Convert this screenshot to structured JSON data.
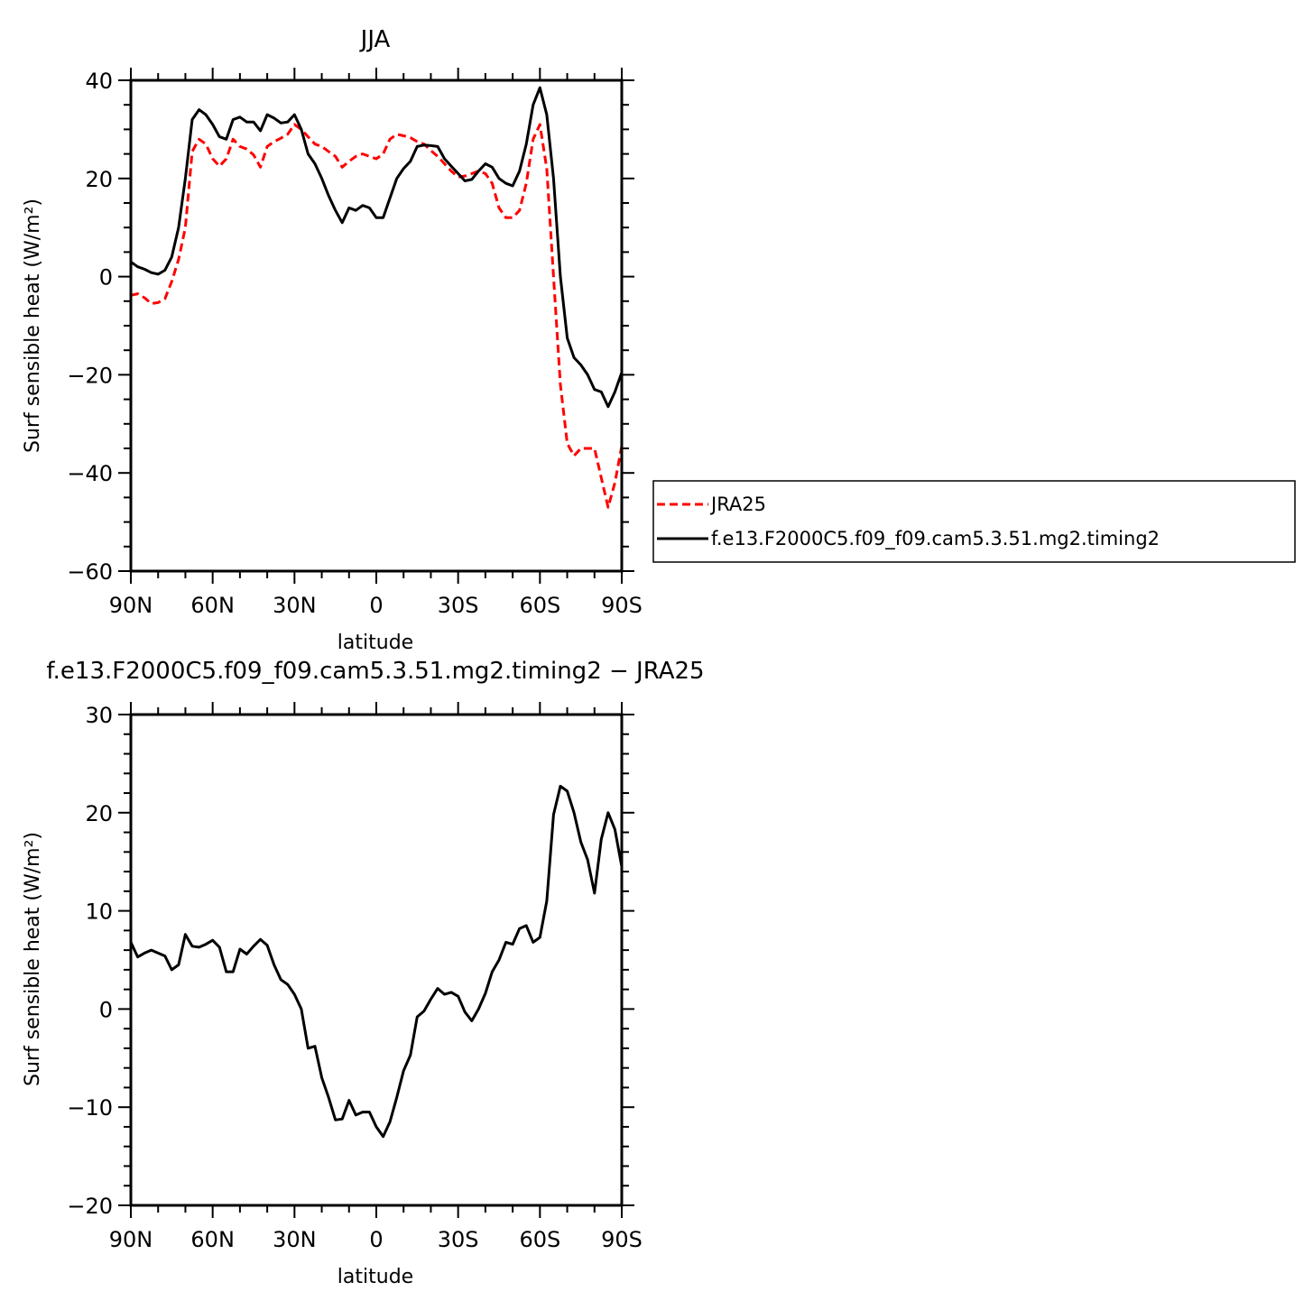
{
  "chart_data": [
    {
      "type": "line",
      "title": "JJA",
      "xlabel": "latitude",
      "ylabel": "Surf sensible heat (W/m²)",
      "xlim": [
        90,
        -90
      ],
      "ylim": [
        -60,
        40
      ],
      "xticks": [
        {
          "value": 90,
          "label": "90N"
        },
        {
          "value": 60,
          "label": "60N"
        },
        {
          "value": 30,
          "label": "30N"
        },
        {
          "value": 0,
          "label": "0"
        },
        {
          "value": -30,
          "label": "30S"
        },
        {
          "value": -60,
          "label": "60S"
        },
        {
          "value": -90,
          "label": "90S"
        }
      ],
      "yticks": [
        {
          "value": 40,
          "label": "40"
        },
        {
          "value": 20,
          "label": "20"
        },
        {
          "value": 0,
          "label": "0"
        },
        {
          "value": -20,
          "label": "−20"
        },
        {
          "value": -40,
          "label": "−40"
        },
        {
          "value": -60,
          "label": "−60"
        }
      ],
      "legend_position": "right",
      "series": [
        {
          "name": "JRA25",
          "color": "#ff0000",
          "dash": "dashed",
          "points": [
            [
              90,
              -3.8
            ],
            [
              87.5,
              -3.5
            ],
            [
              85,
              -4.3
            ],
            [
              82.5,
              -5.5
            ],
            [
              80,
              -5.3
            ],
            [
              77.5,
              -4.5
            ],
            [
              75,
              -1
            ],
            [
              72.5,
              3.5
            ],
            [
              70,
              10
            ],
            [
              67.5,
              25.5
            ],
            [
              65,
              28
            ],
            [
              62.5,
              27
            ],
            [
              60,
              24
            ],
            [
              57.5,
              22.5
            ],
            [
              55,
              24
            ],
            [
              52.5,
              28
            ],
            [
              50,
              26.5
            ],
            [
              47.5,
              26
            ],
            [
              45,
              24.8
            ],
            [
              42.5,
              22.3
            ],
            [
              40,
              26.5
            ],
            [
              37.5,
              27.5
            ],
            [
              35,
              28.2
            ],
            [
              32.5,
              29
            ],
            [
              30,
              31
            ],
            [
              27.5,
              30
            ],
            [
              25,
              28.5
            ],
            [
              22.5,
              27
            ],
            [
              20,
              26.5
            ],
            [
              17.5,
              25.5
            ],
            [
              15,
              24.5
            ],
            [
              12.5,
              22.3
            ],
            [
              10,
              23.5
            ],
            [
              7.5,
              24.5
            ],
            [
              5,
              25
            ],
            [
              2.5,
              24.5
            ],
            [
              0,
              24
            ],
            [
              -2.5,
              25
            ],
            [
              -5,
              28
            ],
            [
              -7.5,
              29
            ],
            [
              -10,
              28.7
            ],
            [
              -12.5,
              28.3
            ],
            [
              -15,
              27.5
            ],
            [
              -17.5,
              27
            ],
            [
              -20,
              25.7
            ],
            [
              -22.5,
              24.5
            ],
            [
              -25,
              23
            ],
            [
              -27.5,
              21.5
            ],
            [
              -30,
              20.3
            ],
            [
              -32.5,
              20.5
            ],
            [
              -35,
              21
            ],
            [
              -37.5,
              21.5
            ],
            [
              -40,
              21
            ],
            [
              -42.5,
              19
            ],
            [
              -45,
              14
            ],
            [
              -47.5,
              12
            ],
            [
              -50,
              12
            ],
            [
              -52.5,
              13.5
            ],
            [
              -55,
              19
            ],
            [
              -57.5,
              28
            ],
            [
              -60,
              31
            ],
            [
              -62.5,
              22
            ],
            [
              -65,
              0
            ],
            [
              -67.5,
              -22
            ],
            [
              -70,
              -34
            ],
            [
              -72.5,
              -36.5
            ],
            [
              -75,
              -35
            ],
            [
              -77.5,
              -35
            ],
            [
              -80,
              -35
            ],
            [
              -82.5,
              -41
            ],
            [
              -85,
              -47
            ],
            [
              -87.5,
              -42
            ],
            [
              -90,
              -34.5
            ]
          ]
        },
        {
          "name": "f.e13.F2000C5.f09_f09.cam5.3.51.mg2.timing2",
          "color": "#000000",
          "dash": "solid",
          "points": [
            [
              90,
              3
            ],
            [
              87.5,
              2
            ],
            [
              85,
              1.5
            ],
            [
              82.5,
              0.8
            ],
            [
              80,
              0.5
            ],
            [
              77.5,
              1.3
            ],
            [
              75,
              4
            ],
            [
              72.5,
              10
            ],
            [
              70,
              20
            ],
            [
              67.5,
              32
            ],
            [
              65,
              34
            ],
            [
              62.5,
              33
            ],
            [
              60,
              31
            ],
            [
              57.5,
              28.5
            ],
            [
              55,
              28
            ],
            [
              52.5,
              32
            ],
            [
              50,
              32.5
            ],
            [
              47.5,
              31.5
            ],
            [
              45,
              31.5
            ],
            [
              42.5,
              29.7
            ],
            [
              40,
              33
            ],
            [
              37.5,
              32.3
            ],
            [
              35,
              31.3
            ],
            [
              32.5,
              31.5
            ],
            [
              30,
              33
            ],
            [
              27.5,
              30
            ],
            [
              25,
              25
            ],
            [
              22.5,
              23
            ],
            [
              20,
              20
            ],
            [
              17.5,
              16.5
            ],
            [
              15,
              13.5
            ],
            [
              12.5,
              11
            ],
            [
              10,
              14
            ],
            [
              7.5,
              13.5
            ],
            [
              5,
              14.5
            ],
            [
              2.5,
              14
            ],
            [
              0,
              12
            ],
            [
              -2.5,
              12
            ],
            [
              -5,
              16
            ],
            [
              -7.5,
              20
            ],
            [
              -10,
              22
            ],
            [
              -12.5,
              23.5
            ],
            [
              -15,
              26.5
            ],
            [
              -17.5,
              26.8
            ],
            [
              -20,
              26.7
            ],
            [
              -22.5,
              26.5
            ],
            [
              -25,
              24
            ],
            [
              -27.5,
              22.5
            ],
            [
              -30,
              21
            ],
            [
              -32.5,
              19.5
            ],
            [
              -35,
              19.8
            ],
            [
              -37.5,
              21.5
            ],
            [
              -40,
              23
            ],
            [
              -42.5,
              22.3
            ],
            [
              -45,
              20
            ],
            [
              -47.5,
              19
            ],
            [
              -50,
              18.5
            ],
            [
              -52.5,
              21.5
            ],
            [
              -55,
              27
            ],
            [
              -57.5,
              35
            ],
            [
              -60,
              38.5
            ],
            [
              -62.5,
              33
            ],
            [
              -65,
              20
            ],
            [
              -67.5,
              0
            ],
            [
              -70,
              -12.5
            ],
            [
              -72.5,
              -16.5
            ],
            [
              -75,
              -18
            ],
            [
              -77.5,
              -20
            ],
            [
              -80,
              -23
            ],
            [
              -82.5,
              -23.5
            ],
            [
              -85,
              -26.5
            ],
            [
              -87.5,
              -23.5
            ],
            [
              -90,
              -19.5
            ]
          ]
        }
      ]
    },
    {
      "type": "line",
      "title": "f.e13.F2000C5.f09_f09.cam5.3.51.mg2.timing2 − JRA25",
      "xlabel": "latitude",
      "ylabel": "Surf sensible heat (W/m²)",
      "xlim": [
        90,
        -90
      ],
      "ylim": [
        -20,
        30
      ],
      "xticks": [
        {
          "value": 90,
          "label": "90N"
        },
        {
          "value": 60,
          "label": "60N"
        },
        {
          "value": 30,
          "label": "30N"
        },
        {
          "value": 0,
          "label": "0"
        },
        {
          "value": -30,
          "label": "30S"
        },
        {
          "value": -60,
          "label": "60S"
        },
        {
          "value": -90,
          "label": "90S"
        }
      ],
      "yticks": [
        {
          "value": 30,
          "label": "30"
        },
        {
          "value": 20,
          "label": "20"
        },
        {
          "value": 10,
          "label": "10"
        },
        {
          "value": 0,
          "label": "0"
        },
        {
          "value": -10,
          "label": "−10"
        },
        {
          "value": -20,
          "label": "−20"
        }
      ],
      "series": [
        {
          "color": "#000000",
          "dash": "solid",
          "points": [
            [
              90,
              6.8
            ],
            [
              87.5,
              5.3
            ],
            [
              85,
              5.7
            ],
            [
              82.5,
              6
            ],
            [
              80,
              5.7
            ],
            [
              77.5,
              5.4
            ],
            [
              75,
              4
            ],
            [
              72.5,
              4.5
            ],
            [
              70,
              7.6
            ],
            [
              67.5,
              6.4
            ],
            [
              65,
              6.3
            ],
            [
              62.5,
              6.6
            ],
            [
              60,
              7
            ],
            [
              57.5,
              6.3
            ],
            [
              55,
              3.8
            ],
            [
              52.5,
              3.8
            ],
            [
              50,
              6.1
            ],
            [
              47.5,
              5.6
            ],
            [
              45,
              6.4
            ],
            [
              42.5,
              7.1
            ],
            [
              40,
              6.5
            ],
            [
              37.5,
              4.5
            ],
            [
              35,
              3
            ],
            [
              32.5,
              2.5
            ],
            [
              30,
              1.5
            ],
            [
              27.5,
              0
            ],
            [
              25,
              -4
            ],
            [
              22.5,
              -3.8
            ],
            [
              20,
              -7
            ],
            [
              17.5,
              -9
            ],
            [
              15,
              -11.3
            ],
            [
              12.5,
              -11.2
            ],
            [
              10,
              -9.3
            ],
            [
              7.5,
              -10.8
            ],
            [
              5,
              -10.5
            ],
            [
              2.5,
              -10.5
            ],
            [
              0,
              -12
            ],
            [
              -2.5,
              -13
            ],
            [
              -5,
              -11.5
            ],
            [
              -7.5,
              -9
            ],
            [
              -10,
              -6.3
            ],
            [
              -12.5,
              -4.7
            ],
            [
              -15,
              -0.8
            ],
            [
              -17.5,
              -0.2
            ],
            [
              -20,
              1
            ],
            [
              -22.5,
              2.1
            ],
            [
              -25,
              1.5
            ],
            [
              -27.5,
              1.7
            ],
            [
              -30,
              1.3
            ],
            [
              -32.5,
              -0.3
            ],
            [
              -35,
              -1.2
            ],
            [
              -37.5,
              0
            ],
            [
              -40,
              1.6
            ],
            [
              -42.5,
              3.8
            ],
            [
              -45,
              5
            ],
            [
              -47.5,
              6.8
            ],
            [
              -50,
              6.6
            ],
            [
              -52.5,
              8.2
            ],
            [
              -55,
              8.5
            ],
            [
              -57.5,
              6.8
            ],
            [
              -60,
              7.3
            ],
            [
              -62.5,
              11
            ],
            [
              -65,
              19.8
            ],
            [
              -67.5,
              22.7
            ],
            [
              -70,
              22.2
            ],
            [
              -72.5,
              20
            ],
            [
              -75,
              17
            ],
            [
              -77.5,
              15.2
            ],
            [
              -80,
              11.8
            ],
            [
              -82.5,
              17.3
            ],
            [
              -85,
              20
            ],
            [
              -87.5,
              18.3
            ],
            [
              -90,
              14.5
            ]
          ]
        }
      ]
    }
  ]
}
